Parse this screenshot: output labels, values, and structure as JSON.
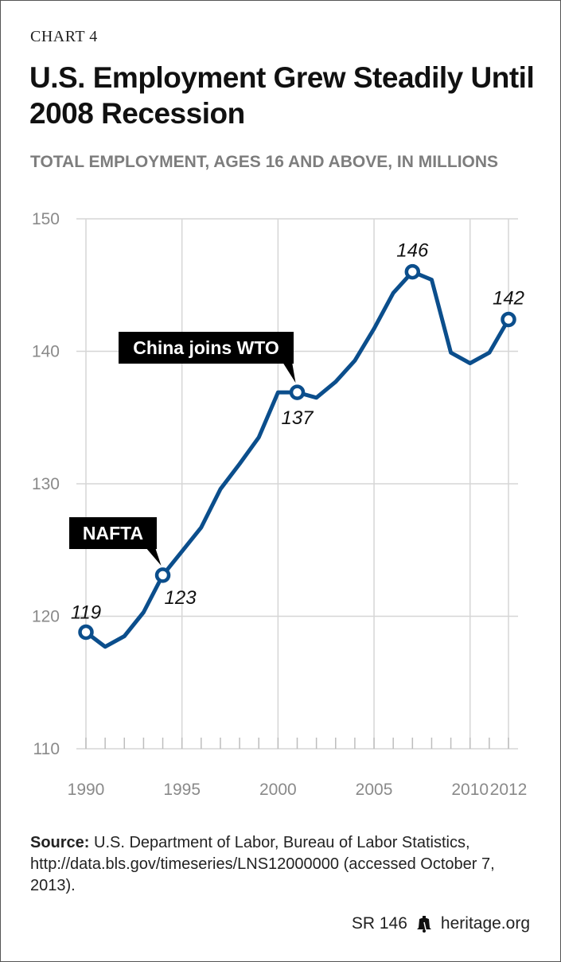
{
  "chart_label": "CHART 4",
  "title": "U.S. Employment Grew Steadily Until 2008 Recession",
  "subtitle": "TOTAL EMPLOYMENT, AGES 16 AND ABOVE, IN MILLIONS",
  "source": {
    "label": "Source:",
    "text": "U.S. Department of Labor, Bureau of Labor Statistics, http://data.bls.gov/timeseries/LNS12000000 (accessed October 7, 2013)."
  },
  "footer": {
    "report": "SR 146",
    "site": "heritage.org",
    "icon": "liberty-bell-icon"
  },
  "chart_data": {
    "type": "line",
    "title": "U.S. Employment Grew Steadily Until 2008 Recession",
    "ylabel": "TOTAL EMPLOYMENT, AGES 16 AND ABOVE, IN MILLIONS",
    "xlabel": "",
    "xlim": [
      1990,
      2012
    ],
    "ylim": [
      110,
      150
    ],
    "x_ticks": [
      1990,
      1995,
      2000,
      2005,
      2010,
      2012
    ],
    "y_ticks": [
      110,
      120,
      130,
      140,
      150
    ],
    "grid": true,
    "line_color": "#0b4e8c",
    "series": [
      {
        "x": [
          1990,
          1991,
          1992,
          1993,
          1994,
          1995,
          1996,
          1997,
          1998,
          1999,
          2000,
          2001,
          2002,
          2003,
          2004,
          2005,
          2006,
          2007,
          2008,
          2009,
          2010,
          2011,
          2012
        ],
        "values": [
          118.8,
          117.7,
          118.5,
          120.3,
          123.1,
          124.9,
          126.7,
          129.6,
          131.5,
          133.5,
          136.9,
          136.9,
          136.5,
          137.7,
          139.3,
          141.7,
          144.4,
          146.0,
          145.4,
          139.9,
          139.1,
          139.9,
          142.4
        ]
      }
    ],
    "data_labels": [
      {
        "x": 1990,
        "y": 118.8,
        "text": "119"
      },
      {
        "x": 1994,
        "y": 123.1,
        "text": "123"
      },
      {
        "x": 2001,
        "y": 136.9,
        "text": "137"
      },
      {
        "x": 2007,
        "y": 146.0,
        "text": "146"
      },
      {
        "x": 2012,
        "y": 142.4,
        "text": "142"
      }
    ],
    "annotations": [
      {
        "x": 1994,
        "y": 123.1,
        "text": "NAFTA"
      },
      {
        "x": 2001,
        "y": 136.9,
        "text": "China joins WTO"
      }
    ]
  }
}
